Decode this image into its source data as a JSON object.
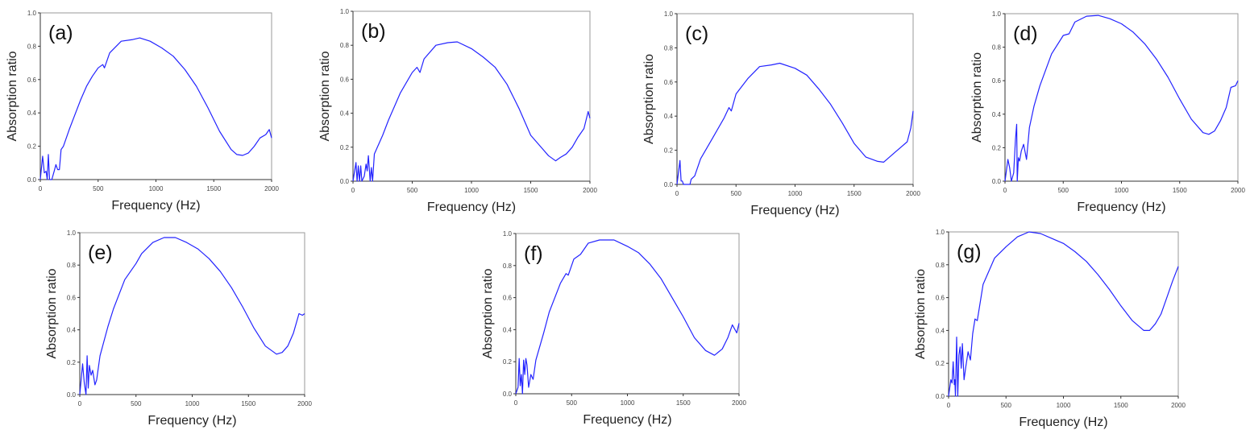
{
  "line_color": "#2323ff",
  "chart_data": [
    {
      "type": "line",
      "panel_label": "(a)",
      "xlabel": "Frequency (Hz)",
      "ylabel": "Absorption ratio",
      "xlim": [
        0,
        2000
      ],
      "ylim": [
        0,
        1
      ],
      "xticks": [
        "0",
        "500",
        "1000",
        "1500",
        "2000"
      ],
      "yticks": [
        "0.0",
        "0.2",
        "0.4",
        "0.6",
        "0.8",
        "1.0"
      ],
      "grid": false,
      "points": [
        [
          0,
          0
        ],
        [
          20,
          0.14
        ],
        [
          35,
          0.04
        ],
        [
          50,
          0.05
        ],
        [
          60,
          0
        ],
        [
          70,
          0.15
        ],
        [
          80,
          0
        ],
        [
          100,
          0
        ],
        [
          120,
          0.05
        ],
        [
          135,
          0.09
        ],
        [
          150,
          0.06
        ],
        [
          165,
          0.06
        ],
        [
          180,
          0.18
        ],
        [
          200,
          0.2
        ],
        [
          250,
          0.3
        ],
        [
          300,
          0.39
        ],
        [
          350,
          0.48
        ],
        [
          400,
          0.56
        ],
        [
          450,
          0.62
        ],
        [
          500,
          0.67
        ],
        [
          540,
          0.69
        ],
        [
          555,
          0.67
        ],
        [
          600,
          0.76
        ],
        [
          700,
          0.83
        ],
        [
          800,
          0.84
        ],
        [
          860,
          0.85
        ],
        [
          950,
          0.83
        ],
        [
          1050,
          0.79
        ],
        [
          1150,
          0.74
        ],
        [
          1250,
          0.66
        ],
        [
          1350,
          0.56
        ],
        [
          1450,
          0.43
        ],
        [
          1550,
          0.29
        ],
        [
          1650,
          0.18
        ],
        [
          1700,
          0.15
        ],
        [
          1750,
          0.145
        ],
        [
          1800,
          0.16
        ],
        [
          1850,
          0.2
        ],
        [
          1900,
          0.25
        ],
        [
          1950,
          0.27
        ],
        [
          1980,
          0.3
        ],
        [
          2000,
          0.25
        ]
      ]
    },
    {
      "type": "line",
      "panel_label": "(b)",
      "xlabel": "Frequency (Hz)",
      "ylabel": "Absorption ratio",
      "xlim": [
        0,
        2000
      ],
      "ylim": [
        0,
        1
      ],
      "xticks": [
        "0",
        "500",
        "1000",
        "1500",
        "2000"
      ],
      "yticks": [
        "0.0",
        "0.2",
        "0.4",
        "0.6",
        "0.8",
        "1.0"
      ],
      "grid": false,
      "points": [
        [
          0,
          0
        ],
        [
          25,
          0.11
        ],
        [
          35,
          0
        ],
        [
          45,
          0.09
        ],
        [
          55,
          0
        ],
        [
          65,
          0.09
        ],
        [
          75,
          0
        ],
        [
          95,
          0.03
        ],
        [
          110,
          0.1
        ],
        [
          120,
          0.06
        ],
        [
          130,
          0.15
        ],
        [
          145,
          0
        ],
        [
          155,
          0.08
        ],
        [
          165,
          0
        ],
        [
          180,
          0.16
        ],
        [
          250,
          0.27
        ],
        [
          300,
          0.36
        ],
        [
          400,
          0.52
        ],
        [
          500,
          0.64
        ],
        [
          540,
          0.67
        ],
        [
          565,
          0.64
        ],
        [
          600,
          0.72
        ],
        [
          700,
          0.8
        ],
        [
          800,
          0.815
        ],
        [
          880,
          0.82
        ],
        [
          1000,
          0.78
        ],
        [
          1100,
          0.73
        ],
        [
          1200,
          0.67
        ],
        [
          1300,
          0.57
        ],
        [
          1400,
          0.43
        ],
        [
          1500,
          0.27
        ],
        [
          1600,
          0.19
        ],
        [
          1650,
          0.15
        ],
        [
          1710,
          0.12
        ],
        [
          1750,
          0.14
        ],
        [
          1800,
          0.16
        ],
        [
          1850,
          0.2
        ],
        [
          1900,
          0.26
        ],
        [
          1950,
          0.31
        ],
        [
          1985,
          0.41
        ],
        [
          2000,
          0.37
        ]
      ]
    },
    {
      "type": "line",
      "panel_label": "(c)",
      "xlabel": "Frequency (Hz)",
      "ylabel": "Absorption ratio",
      "xlim": [
        0,
        2000
      ],
      "ylim": [
        0,
        1
      ],
      "xticks": [
        "0",
        "500",
        "1000",
        "1500",
        "2000"
      ],
      "yticks": [
        "0.0",
        "0.2",
        "0.4",
        "0.6",
        "0.8",
        "1.0"
      ],
      "grid": false,
      "points": [
        [
          0,
          0
        ],
        [
          25,
          0.14
        ],
        [
          35,
          0.02
        ],
        [
          45,
          0.02
        ],
        [
          55,
          0
        ],
        [
          110,
          0
        ],
        [
          120,
          0.03
        ],
        [
          150,
          0.05
        ],
        [
          200,
          0.15
        ],
        [
          300,
          0.27
        ],
        [
          400,
          0.39
        ],
        [
          440,
          0.45
        ],
        [
          460,
          0.43
        ],
        [
          500,
          0.53
        ],
        [
          600,
          0.62
        ],
        [
          700,
          0.69
        ],
        [
          800,
          0.7
        ],
        [
          870,
          0.71
        ],
        [
          1000,
          0.68
        ],
        [
          1100,
          0.64
        ],
        [
          1200,
          0.56
        ],
        [
          1300,
          0.47
        ],
        [
          1400,
          0.36
        ],
        [
          1500,
          0.24
        ],
        [
          1600,
          0.16
        ],
        [
          1700,
          0.135
        ],
        [
          1750,
          0.13
        ],
        [
          1800,
          0.16
        ],
        [
          1850,
          0.19
        ],
        [
          1900,
          0.22
        ],
        [
          1950,
          0.25
        ],
        [
          1980,
          0.33
        ],
        [
          2000,
          0.43
        ]
      ]
    },
    {
      "type": "line",
      "panel_label": "(d)",
      "xlabel": "Frequency (Hz)",
      "ylabel": "Absorption ratio",
      "xlim": [
        0,
        2000
      ],
      "ylim": [
        0,
        1
      ],
      "xticks": [
        "0",
        "500",
        "1000",
        "1500",
        "2000"
      ],
      "yticks": [
        "0.0",
        "0.2",
        "0.4",
        "0.6",
        "0.8",
        "1.0"
      ],
      "grid": false,
      "points": [
        [
          0,
          0
        ],
        [
          25,
          0.13
        ],
        [
          40,
          0.08
        ],
        [
          55,
          0
        ],
        [
          75,
          0.05
        ],
        [
          90,
          0.25
        ],
        [
          100,
          0.34
        ],
        [
          105,
          0
        ],
        [
          115,
          0.14
        ],
        [
          125,
          0.12
        ],
        [
          140,
          0.18
        ],
        [
          160,
          0.22
        ],
        [
          185,
          0.13
        ],
        [
          210,
          0.32
        ],
        [
          250,
          0.45
        ],
        [
          300,
          0.57
        ],
        [
          400,
          0.76
        ],
        [
          500,
          0.87
        ],
        [
          550,
          0.88
        ],
        [
          600,
          0.95
        ],
        [
          700,
          0.985
        ],
        [
          800,
          0.99
        ],
        [
          900,
          0.97
        ],
        [
          1000,
          0.94
        ],
        [
          1100,
          0.89
        ],
        [
          1200,
          0.82
        ],
        [
          1300,
          0.73
        ],
        [
          1400,
          0.62
        ],
        [
          1500,
          0.49
        ],
        [
          1600,
          0.37
        ],
        [
          1700,
          0.29
        ],
        [
          1750,
          0.28
        ],
        [
          1800,
          0.3
        ],
        [
          1850,
          0.36
        ],
        [
          1900,
          0.44
        ],
        [
          1940,
          0.56
        ],
        [
          1980,
          0.57
        ],
        [
          2000,
          0.6
        ]
      ]
    },
    {
      "type": "line",
      "panel_label": "(e)",
      "xlabel": "Frequency (Hz)",
      "ylabel": "Absorption ratio",
      "xlim": [
        0,
        2000
      ],
      "ylim": [
        0,
        1
      ],
      "xticks": [
        "0",
        "500",
        "1000",
        "1500",
        "2000"
      ],
      "yticks": [
        "0.0",
        "0.2",
        "0.4",
        "0.6",
        "0.8",
        "1.0"
      ],
      "grid": false,
      "points": [
        [
          0,
          0
        ],
        [
          25,
          0.19
        ],
        [
          40,
          0.07
        ],
        [
          55,
          0
        ],
        [
          65,
          0.24
        ],
        [
          75,
          0.04
        ],
        [
          85,
          0.18
        ],
        [
          100,
          0.12
        ],
        [
          115,
          0.15
        ],
        [
          135,
          0.06
        ],
        [
          150,
          0.09
        ],
        [
          180,
          0.24
        ],
        [
          250,
          0.42
        ],
        [
          300,
          0.53
        ],
        [
          400,
          0.71
        ],
        [
          500,
          0.81
        ],
        [
          550,
          0.87
        ],
        [
          650,
          0.94
        ],
        [
          750,
          0.97
        ],
        [
          850,
          0.97
        ],
        [
          950,
          0.94
        ],
        [
          1050,
          0.9
        ],
        [
          1150,
          0.84
        ],
        [
          1250,
          0.76
        ],
        [
          1350,
          0.66
        ],
        [
          1450,
          0.54
        ],
        [
          1550,
          0.41
        ],
        [
          1650,
          0.3
        ],
        [
          1750,
          0.25
        ],
        [
          1800,
          0.26
        ],
        [
          1850,
          0.3
        ],
        [
          1900,
          0.38
        ],
        [
          1950,
          0.5
        ],
        [
          1980,
          0.49
        ],
        [
          2000,
          0.5
        ]
      ]
    },
    {
      "type": "line",
      "panel_label": "(f)",
      "xlabel": "Frequency (Hz)",
      "ylabel": "Absorption ratio",
      "xlim": [
        0,
        2000
      ],
      "ylim": [
        0,
        1
      ],
      "xticks": [
        "0",
        "500",
        "1000",
        "1500",
        "2000"
      ],
      "yticks": [
        "0.0",
        "0.2",
        "0.4",
        "0.6",
        "0.8",
        "1.0"
      ],
      "grid": false,
      "points": [
        [
          0,
          0
        ],
        [
          20,
          0.04
        ],
        [
          30,
          0.22
        ],
        [
          40,
          0.05
        ],
        [
          50,
          0.12
        ],
        [
          60,
          0
        ],
        [
          70,
          0.21
        ],
        [
          80,
          0.12
        ],
        [
          90,
          0.22
        ],
        [
          100,
          0.18
        ],
        [
          115,
          0.04
        ],
        [
          135,
          0.12
        ],
        [
          155,
          0.09
        ],
        [
          180,
          0.21
        ],
        [
          250,
          0.38
        ],
        [
          300,
          0.51
        ],
        [
          400,
          0.69
        ],
        [
          450,
          0.75
        ],
        [
          470,
          0.74
        ],
        [
          520,
          0.84
        ],
        [
          580,
          0.87
        ],
        [
          650,
          0.94
        ],
        [
          750,
          0.96
        ],
        [
          880,
          0.96
        ],
        [
          1000,
          0.92
        ],
        [
          1100,
          0.88
        ],
        [
          1200,
          0.81
        ],
        [
          1300,
          0.72
        ],
        [
          1400,
          0.6
        ],
        [
          1500,
          0.48
        ],
        [
          1600,
          0.35
        ],
        [
          1700,
          0.27
        ],
        [
          1780,
          0.24
        ],
        [
          1850,
          0.28
        ],
        [
          1900,
          0.35
        ],
        [
          1940,
          0.43
        ],
        [
          1980,
          0.38
        ],
        [
          2000,
          0.44
        ]
      ]
    },
    {
      "type": "line",
      "panel_label": "(g)",
      "xlabel": "Frequency (Hz)",
      "ylabel": "Absorption ratio",
      "xlim": [
        0,
        2000
      ],
      "ylim": [
        0,
        1
      ],
      "xticks": [
        "0",
        "500",
        "1000",
        "1500",
        "2000"
      ],
      "yticks": [
        "0.0",
        "0.2",
        "0.4",
        "0.6",
        "0.8",
        "1.0"
      ],
      "grid": false,
      "points": [
        [
          0,
          0
        ],
        [
          20,
          0.1
        ],
        [
          30,
          0.08
        ],
        [
          40,
          0.21
        ],
        [
          50,
          0.07
        ],
        [
          55,
          0.1
        ],
        [
          60,
          0
        ],
        [
          70,
          0.36
        ],
        [
          80,
          0
        ],
        [
          90,
          0.25
        ],
        [
          100,
          0.3
        ],
        [
          110,
          0.17
        ],
        [
          120,
          0.32
        ],
        [
          135,
          0.1
        ],
        [
          150,
          0.18
        ],
        [
          170,
          0.27
        ],
        [
          190,
          0.22
        ],
        [
          210,
          0.38
        ],
        [
          230,
          0.47
        ],
        [
          250,
          0.46
        ],
        [
          300,
          0.68
        ],
        [
          400,
          0.84
        ],
        [
          500,
          0.91
        ],
        [
          600,
          0.97
        ],
        [
          700,
          1.0
        ],
        [
          800,
          0.99
        ],
        [
          900,
          0.96
        ],
        [
          1000,
          0.93
        ],
        [
          1100,
          0.88
        ],
        [
          1200,
          0.82
        ],
        [
          1300,
          0.74
        ],
        [
          1400,
          0.65
        ],
        [
          1500,
          0.55
        ],
        [
          1600,
          0.46
        ],
        [
          1700,
          0.4
        ],
        [
          1750,
          0.4
        ],
        [
          1800,
          0.44
        ],
        [
          1850,
          0.5
        ],
        [
          1900,
          0.6
        ],
        [
          1950,
          0.7
        ],
        [
          2000,
          0.79
        ]
      ]
    }
  ]
}
